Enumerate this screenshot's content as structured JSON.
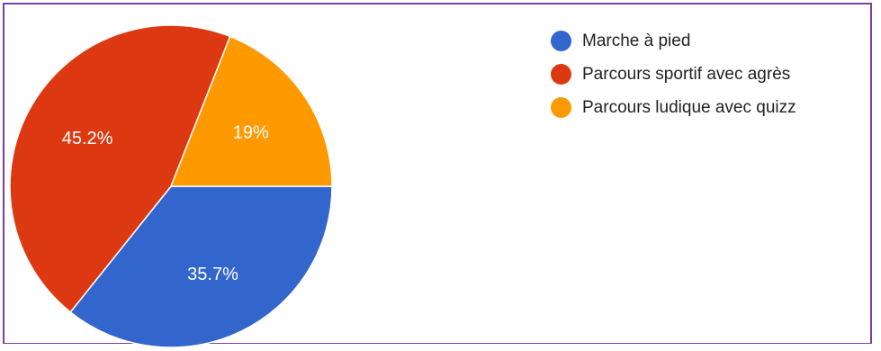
{
  "chart_data": {
    "type": "pie",
    "categories": [
      "Marche à pied",
      "Parcours sportif avec agrès",
      "Parcours ludique avec quizz"
    ],
    "values": [
      35.7,
      45.2,
      19
    ],
    "value_labels": [
      "35.7%",
      "45.2%",
      "19%"
    ],
    "colors": [
      "#3366cc",
      "#dc3912",
      "#ff9900"
    ],
    "start_angle_deg": 90,
    "direction": "clockwise",
    "legend_position": "right"
  }
}
